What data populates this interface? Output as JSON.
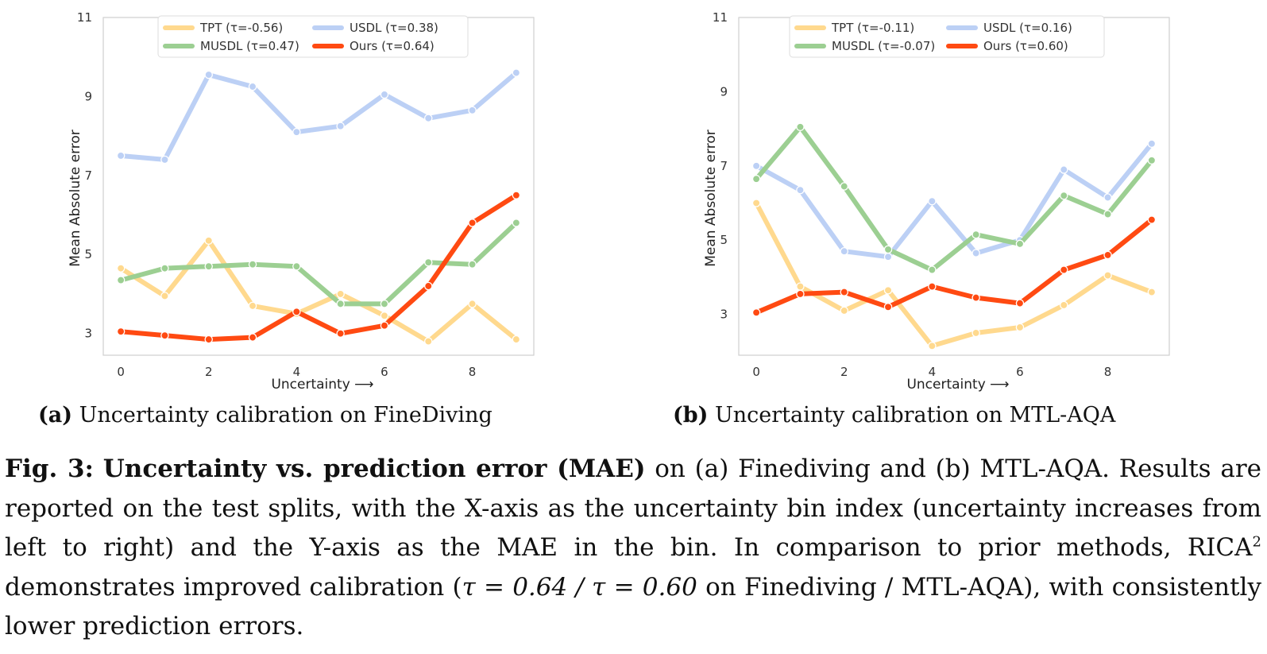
{
  "chart_data": [
    {
      "type": "line",
      "panel_label": "(a)",
      "caption": "Uncertainty calibration on FineDiving",
      "xlabel": "Uncertainty ⟶",
      "ylabel": "Mean Absolute error",
      "xlim": [
        -0.4,
        9.4
      ],
      "ylim": [
        2.45,
        11
      ],
      "xticks": [
        0,
        2,
        4,
        6,
        8
      ],
      "yticks": [
        3,
        5,
        7,
        9,
        11
      ],
      "grid": false,
      "legend_position": "top-center",
      "x": [
        0,
        1,
        2,
        3,
        4,
        5,
        6,
        7,
        8,
        9
      ],
      "series": [
        {
          "name": "TPT (τ=-0.56)",
          "color": "#ffd98e",
          "values": [
            4.65,
            3.95,
            5.35,
            3.7,
            3.5,
            4.0,
            3.45,
            2.8,
            3.75,
            2.85
          ]
        },
        {
          "name": "USDL (τ=0.38)",
          "color": "#bcd0f5",
          "values": [
            7.5,
            7.4,
            9.55,
            9.25,
            8.1,
            8.25,
            9.05,
            8.45,
            8.65,
            9.6
          ]
        },
        {
          "name": "MUSDL (τ=0.47)",
          "color": "#9ccf92",
          "values": [
            4.35,
            4.65,
            4.7,
            4.75,
            4.7,
            3.75,
            3.75,
            4.8,
            4.75,
            5.8
          ]
        },
        {
          "name": "Ours (τ=0.64)",
          "color": "#ff4a12",
          "values": [
            3.05,
            2.95,
            2.85,
            2.9,
            3.55,
            3.0,
            3.2,
            4.2,
            5.8,
            6.5
          ]
        }
      ]
    },
    {
      "type": "line",
      "panel_label": "(b)",
      "caption": "Uncertainty calibration on MTL-AQA",
      "xlabel": "Uncertainty ⟶",
      "ylabel": "Mean Absolute error",
      "xlim": [
        -0.4,
        9.4
      ],
      "ylim": [
        1.9,
        11
      ],
      "xticks": [
        0,
        2,
        4,
        6,
        8
      ],
      "yticks": [
        3,
        5,
        7,
        9,
        11
      ],
      "grid": false,
      "legend_position": "top-center",
      "x": [
        0,
        1,
        2,
        3,
        4,
        5,
        6,
        7,
        8,
        9
      ],
      "series": [
        {
          "name": "TPT (τ=-0.11)",
          "color": "#ffd98e",
          "values": [
            6.0,
            3.75,
            3.1,
            3.65,
            2.15,
            2.5,
            2.65,
            3.25,
            4.05,
            3.6
          ]
        },
        {
          "name": "USDL (τ=0.16)",
          "color": "#bcd0f5",
          "values": [
            7.0,
            6.35,
            4.7,
            4.55,
            6.05,
            4.65,
            5.0,
            6.9,
            6.15,
            7.6
          ]
        },
        {
          "name": "MUSDL (τ=-0.07)",
          "color": "#9ccf92",
          "values": [
            6.65,
            8.05,
            6.45,
            4.75,
            4.2,
            5.15,
            4.9,
            6.2,
            5.7,
            7.15
          ]
        },
        {
          "name": "Ours (τ=0.60)",
          "color": "#ff4a12",
          "values": [
            3.05,
            3.55,
            3.6,
            3.2,
            3.75,
            3.45,
            3.3,
            4.2,
            4.6,
            5.55
          ]
        }
      ]
    }
  ],
  "caption": {
    "fig_label": "Fig. 3:",
    "bold_title": "Uncertainty vs. prediction error (MAE)",
    "text_1": " on (a) Finediving and (b) MTL-AQA. Results are reported on the test splits, with the X-axis as the uncertainty bin index (uncertainty increases from left to right) and the Y-axis as the MAE in the bin. In comparison to prior methods, RICA",
    "superscript": "2",
    "text_2": " demonstrates improved calibration (",
    "math_1": "τ = 0.64 / τ = 0.60",
    "text_3": " on Finediving / MTL-AQA), with consistently lower prediction errors."
  }
}
